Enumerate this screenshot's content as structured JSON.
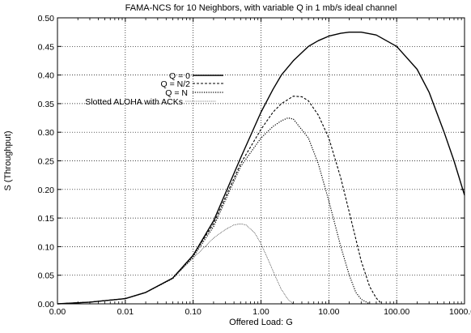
{
  "chart_data": {
    "type": "line",
    "title": "FAMA-NCS for 10 Neighbors, with variable Q in 1 mb/s ideal channel",
    "xlabel": "Offered Load: G",
    "ylabel": "S (Throughput)",
    "x_scale": "log",
    "xlim": [
      0.001,
      1000
    ],
    "ylim": [
      0.0,
      0.5
    ],
    "x_ticks": [
      0.001,
      0.01,
      0.1,
      1,
      10,
      100,
      1000
    ],
    "x_tick_labels": [
      "0.00",
      "0.01",
      "0.10",
      "1.00",
      "10.00",
      "100.00",
      "1000.00"
    ],
    "y_ticks": [
      0.0,
      0.05,
      0.1,
      0.15,
      0.2,
      0.25,
      0.3,
      0.35,
      0.4,
      0.45,
      0.5
    ],
    "y_tick_labels": [
      "0.00",
      "0.05",
      "0.10",
      "0.15",
      "0.20",
      "0.25",
      "0.30",
      "0.35",
      "0.40",
      "0.45",
      "0.50"
    ],
    "grid": true,
    "legend_position": "upper-left",
    "series": [
      {
        "name": "Q =   0",
        "style": "solid",
        "x": [
          0.001,
          0.003,
          0.01,
          0.02,
          0.05,
          0.1,
          0.2,
          0.5,
          1,
          1.5,
          2,
          3,
          5,
          7,
          10,
          15,
          20,
          30,
          50,
          100,
          200,
          300,
          500,
          700,
          1000
        ],
        "y": [
          0.0,
          0.003,
          0.009,
          0.02,
          0.045,
          0.085,
          0.145,
          0.255,
          0.335,
          0.375,
          0.4,
          0.425,
          0.45,
          0.46,
          0.468,
          0.473,
          0.475,
          0.475,
          0.47,
          0.45,
          0.41,
          0.37,
          0.3,
          0.25,
          0.19
        ]
      },
      {
        "name": "Q =  N/2",
        "style": "dashed",
        "x": [
          0.001,
          0.003,
          0.01,
          0.02,
          0.05,
          0.1,
          0.2,
          0.5,
          1,
          1.5,
          2,
          3,
          4,
          5,
          7,
          10,
          15,
          20,
          30,
          40,
          50,
          60
        ],
        "y": [
          0.0,
          0.003,
          0.009,
          0.02,
          0.045,
          0.085,
          0.14,
          0.245,
          0.305,
          0.335,
          0.35,
          0.363,
          0.362,
          0.355,
          0.33,
          0.29,
          0.22,
          0.16,
          0.075,
          0.03,
          0.01,
          0.0
        ]
      },
      {
        "name": "Q =   N",
        "style": "dotted",
        "x": [
          0.001,
          0.003,
          0.01,
          0.02,
          0.05,
          0.1,
          0.2,
          0.5,
          1,
          1.5,
          2,
          2.5,
          3,
          5,
          7,
          10,
          15,
          20,
          25,
          30,
          40
        ],
        "y": [
          0.0,
          0.003,
          0.009,
          0.02,
          0.044,
          0.082,
          0.135,
          0.24,
          0.29,
          0.31,
          0.32,
          0.325,
          0.323,
          0.29,
          0.245,
          0.18,
          0.1,
          0.05,
          0.02,
          0.008,
          0.0
        ]
      },
      {
        "name": "Slotted ALOHA with ACKs",
        "style": "thin",
        "x": [
          0.001,
          0.003,
          0.01,
          0.02,
          0.05,
          0.1,
          0.15,
          0.2,
          0.3,
          0.4,
          0.5,
          0.6,
          0.8,
          1,
          1.3,
          1.6,
          2,
          2.5,
          3
        ],
        "y": [
          0.0,
          0.003,
          0.009,
          0.02,
          0.045,
          0.08,
          0.1,
          0.115,
          0.13,
          0.138,
          0.14,
          0.138,
          0.125,
          0.105,
          0.075,
          0.05,
          0.025,
          0.008,
          0.0
        ]
      }
    ]
  }
}
